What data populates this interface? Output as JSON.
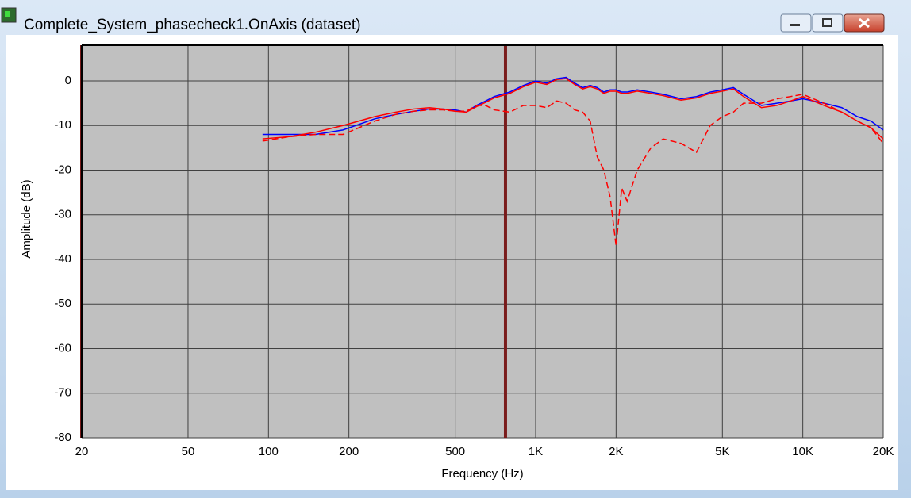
{
  "window": {
    "title": "Complete_System_phasecheck1.OnAxis (dataset)"
  },
  "chart_data": {
    "type": "line",
    "log_x": true,
    "grid": true,
    "x_label": "Frequency (Hz)",
    "y_label": "Amplitude (dB)",
    "xlim": [
      20,
      20000
    ],
    "ylim": [
      -80,
      8
    ],
    "xticks": [
      20,
      50,
      100,
      200,
      500,
      {
        "value": 1000,
        "label": "1K"
      },
      {
        "value": 2000,
        "label": "2K"
      },
      {
        "value": 5000,
        "label": "5K"
      },
      {
        "value": 10000,
        "label": "10K"
      },
      {
        "value": 20000,
        "label": "20K"
      }
    ],
    "yticks": [
      0,
      -10,
      -20,
      -30,
      -40,
      -50,
      -60,
      -70,
      -80
    ],
    "cursors": [
      20,
      771
    ],
    "cursor_color": "#7a1c1c",
    "x": [
      95,
      120,
      150,
      190,
      250,
      300,
      350,
      400,
      450,
      500,
      550,
      600,
      650,
      700,
      800,
      900,
      1000,
      1100,
      1200,
      1300,
      1400,
      1500,
      1600,
      1700,
      1800,
      1900,
      2000,
      2100,
      2200,
      2400,
      2700,
      3000,
      3500,
      4000,
      4500,
      5000,
      5500,
      6000,
      7000,
      8000,
      9000,
      10000,
      12000,
      14000,
      16000,
      18000,
      20000
    ],
    "series": [
      {
        "color": "#0000ff",
        "dashed": false,
        "values": [
          -12,
          -12,
          -12,
          -11,
          -8.5,
          -7.5,
          -6.8,
          -6.3,
          -6.3,
          -6.5,
          -7,
          -5.5,
          -4.5,
          -3.5,
          -2.5,
          -1,
          0,
          -0.5,
          0.5,
          0.8,
          -0.5,
          -1.5,
          -1,
          -1.5,
          -2.5,
          -2,
          -2,
          -2.5,
          -2.5,
          -2,
          -2.5,
          -3,
          -4,
          -3.5,
          -2.5,
          -2,
          -1.5,
          -3,
          -5.5,
          -5,
          -4.5,
          -4,
          -5,
          -6,
          -8,
          -9,
          -11
        ]
      },
      {
        "color": "#ff0000",
        "dashed": false,
        "values": [
          -13,
          -12.5,
          -11.5,
          -10,
          -8,
          -7,
          -6.3,
          -6,
          -6.3,
          -6.8,
          -7,
          -5.8,
          -4.8,
          -3.8,
          -2.8,
          -1.3,
          -0.3,
          -0.8,
          0.3,
          0.5,
          -0.8,
          -1.8,
          -1.3,
          -1.8,
          -2.8,
          -2.3,
          -2.3,
          -2.8,
          -2.8,
          -2.3,
          -2.8,
          -3.3,
          -4.3,
          -3.8,
          -2.8,
          -2.3,
          -1.8,
          -3.5,
          -6,
          -5.5,
          -4.5,
          -3.5,
          -5.5,
          -7,
          -9,
          -10.5,
          -13
        ]
      },
      {
        "color": "#ff0000",
        "dashed": true,
        "values": [
          -13.5,
          -12.5,
          -12,
          -12,
          -9,
          -7.5,
          -6.8,
          -6.5,
          -6.5,
          -6.8,
          -6.8,
          -5.5,
          -5.5,
          -6.5,
          -7,
          -5.5,
          -5.5,
          -6,
          -4.5,
          -5,
          -6.5,
          -7,
          -9,
          -17,
          -20,
          -26,
          -37,
          -24,
          -27,
          -20,
          -15,
          -13,
          -14,
          -16,
          -10,
          -8,
          -7,
          -5,
          -5,
          -4,
          -3.5,
          -3,
          -5,
          -7,
          -9,
          -10.5,
          -14
        ]
      }
    ]
  }
}
